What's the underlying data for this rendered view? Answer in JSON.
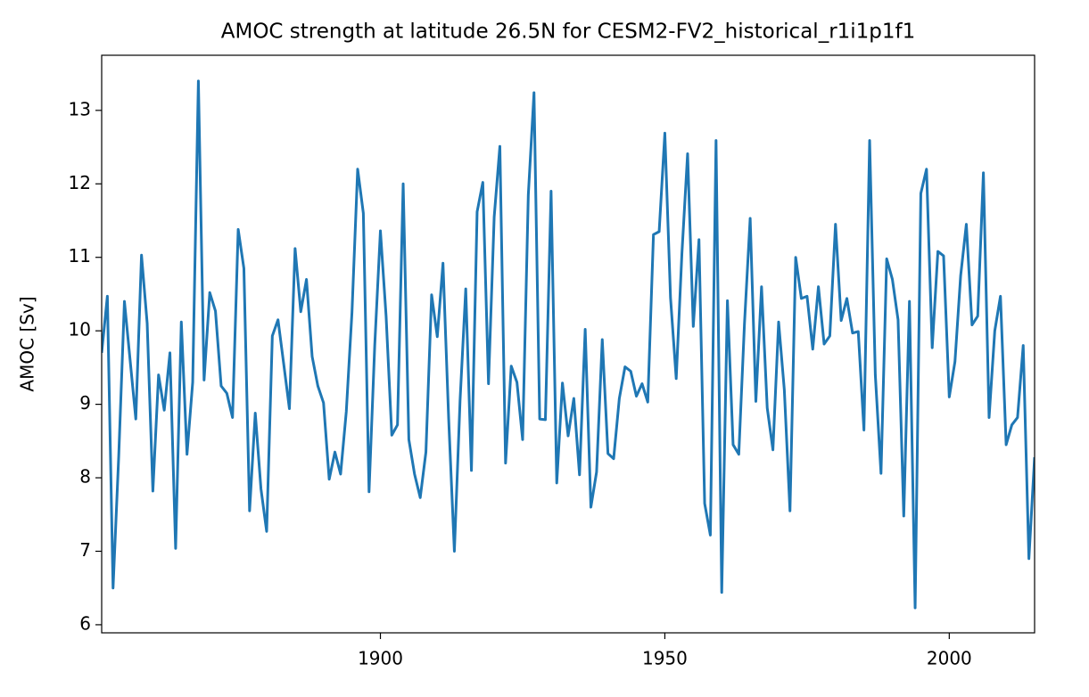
{
  "chart_data": {
    "type": "line",
    "title": "AMOC strength at latitude 26.5N for CESM2-FV2_historical_r1i1p1f1",
    "y_label": "AMOC [Sv]",
    "color": "#1f77b4",
    "x": [
      1851,
      1852,
      1853,
      1854,
      1855,
      1856,
      1857,
      1858,
      1859,
      1860,
      1861,
      1862,
      1863,
      1864,
      1865,
      1866,
      1867,
      1868,
      1869,
      1870,
      1871,
      1872,
      1873,
      1874,
      1875,
      1876,
      1877,
      1878,
      1879,
      1880,
      1881,
      1882,
      1883,
      1884,
      1885,
      1886,
      1887,
      1888,
      1889,
      1890,
      1891,
      1892,
      1893,
      1894,
      1895,
      1896,
      1897,
      1898,
      1899,
      1900,
      1901,
      1902,
      1903,
      1904,
      1905,
      1906,
      1907,
      1908,
      1909,
      1910,
      1911,
      1912,
      1913,
      1914,
      1915,
      1916,
      1917,
      1918,
      1919,
      1920,
      1921,
      1922,
      1923,
      1924,
      1925,
      1926,
      1927,
      1928,
      1929,
      1930,
      1931,
      1932,
      1933,
      1934,
      1935,
      1936,
      1937,
      1938,
      1939,
      1940,
      1941,
      1942,
      1943,
      1944,
      1945,
      1946,
      1947,
      1948,
      1949,
      1950,
      1951,
      1952,
      1953,
      1954,
      1955,
      1956,
      1957,
      1958,
      1959,
      1960,
      1961,
      1962,
      1963,
      1964,
      1965,
      1966,
      1967,
      1968,
      1969,
      1970,
      1971,
      1972,
      1973,
      1974,
      1975,
      1976,
      1977,
      1978,
      1979,
      1980,
      1981,
      1982,
      1983,
      1984,
      1985,
      1986,
      1987,
      1988,
      1989,
      1990,
      1991,
      1992,
      1993,
      1994,
      1995,
      1996,
      1997,
      1998,
      1999,
      2000,
      2001,
      2002,
      2003,
      2004,
      2005,
      2006,
      2007,
      2008,
      2009,
      2010,
      2011,
      2012,
      2013,
      2014,
      2015
    ],
    "values": [
      9.7,
      10.47,
      6.5,
      8.3,
      10.4,
      9.6,
      8.8,
      11.03,
      10.1,
      7.82,
      9.4,
      8.92,
      9.7,
      7.04,
      10.12,
      8.32,
      9.3,
      13.4,
      9.33,
      10.52,
      10.27,
      9.25,
      9.15,
      8.82,
      11.38,
      10.85,
      7.55,
      8.88,
      7.85,
      7.27,
      9.93,
      10.15,
      9.55,
      8.94,
      11.12,
      10.26,
      10.7,
      9.65,
      9.25,
      9.02,
      7.98,
      8.35,
      8.05,
      8.9,
      10.25,
      12.2,
      11.6,
      7.81,
      9.8,
      11.36,
      10.2,
      8.58,
      8.72,
      12.0,
      8.52,
      8.05,
      7.73,
      8.35,
      10.49,
      9.92,
      10.92,
      8.8,
      7.0,
      9.05,
      10.57,
      8.1,
      11.62,
      12.02,
      9.28,
      11.55,
      12.51,
      8.2,
      9.52,
      9.3,
      8.52,
      11.85,
      13.24,
      8.8,
      8.79,
      11.9,
      7.93,
      9.29,
      8.57,
      9.08,
      8.04,
      10.02,
      7.6,
      8.08,
      9.88,
      8.33,
      8.26,
      9.08,
      9.51,
      9.45,
      9.11,
      9.28,
      9.03,
      11.31,
      11.35,
      12.69,
      10.45,
      9.35,
      11.05,
      12.41,
      10.06,
      11.24,
      7.65,
      7.22,
      12.59,
      6.44,
      10.41,
      8.45,
      8.32,
      10.1,
      11.53,
      9.04,
      10.6,
      8.95,
      8.38,
      10.12,
      9.2,
      7.55,
      11.0,
      10.44,
      10.47,
      9.75,
      10.6,
      9.82,
      9.93,
      11.45,
      10.14,
      10.44,
      9.97,
      9.99,
      8.65,
      12.59,
      9.4,
      8.06,
      10.98,
      10.7,
      10.15,
      7.48,
      10.4,
      6.23,
      11.87,
      12.2,
      9.77,
      11.08,
      11.02,
      9.1,
      9.58,
      10.75,
      11.45,
      10.08,
      10.2,
      12.15,
      8.82,
      10.0,
      10.47,
      8.45,
      8.72,
      8.82,
      9.8,
      6.9,
      8.28
    ],
    "xlim": [
      1851,
      2015
    ],
    "xticks": [
      1900,
      1950,
      2000
    ],
    "ylim": [
      5.89,
      13.75
    ],
    "yticks": [
      6,
      7,
      8,
      9,
      10,
      11,
      12,
      13
    ]
  }
}
